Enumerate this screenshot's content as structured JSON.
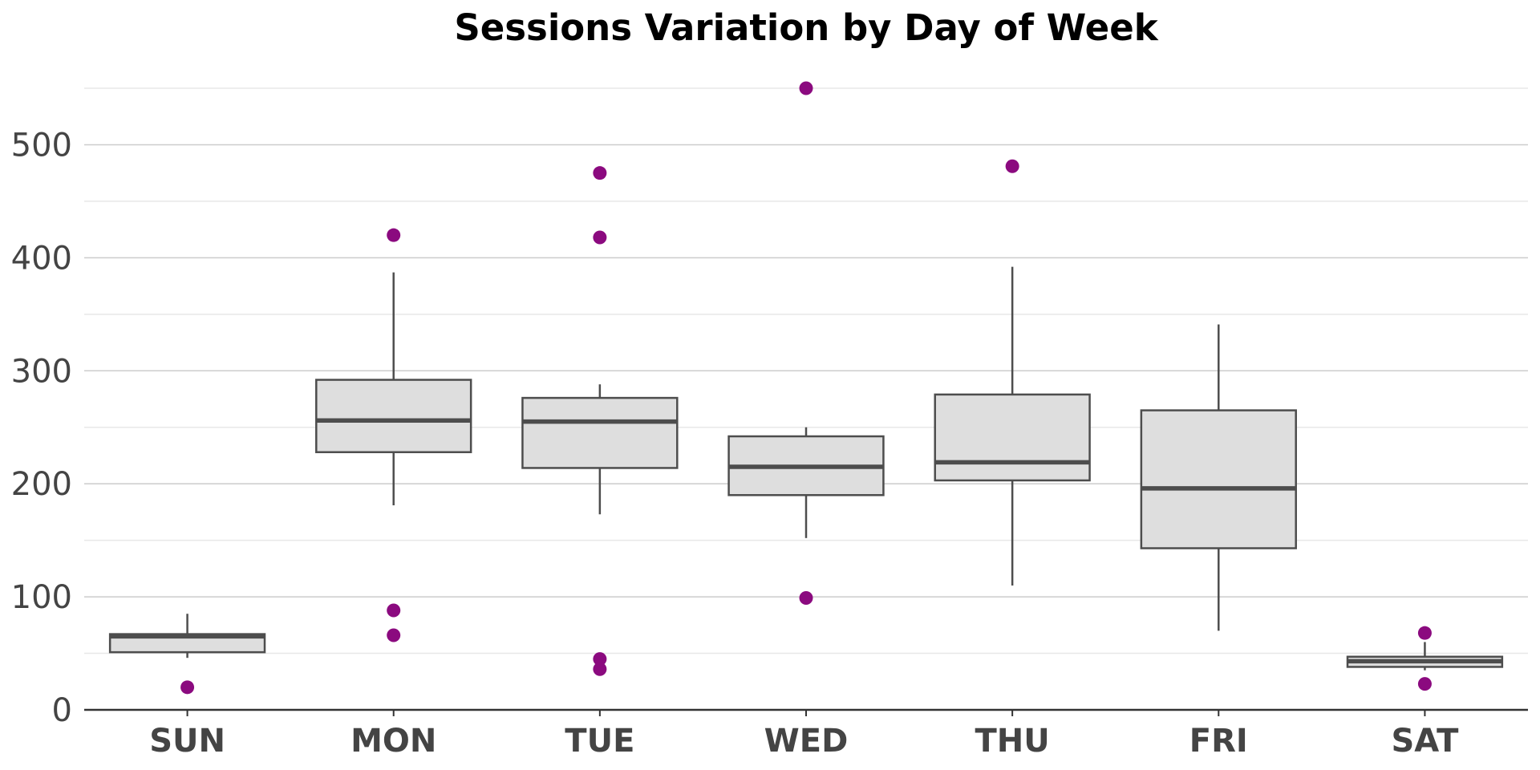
{
  "chart_data": {
    "type": "boxplot",
    "title": "Sessions Variation by Day of Week",
    "xlabel": "",
    "ylabel": "",
    "ylim": [
      0,
      550
    ],
    "yticks": [
      0,
      100,
      200,
      300,
      400,
      500
    ],
    "grid": {
      "major": true,
      "minor": true
    },
    "categories": [
      "SUN",
      "MON",
      "TUE",
      "WED",
      "THU",
      "FRI",
      "SAT"
    ],
    "boxes": [
      {
        "category": "SUN",
        "q1": 51,
        "median": 65,
        "q3": 67,
        "whisker_low": 46,
        "whisker_high": 85,
        "outliers": [
          20
        ]
      },
      {
        "category": "MON",
        "q1": 228,
        "median": 256,
        "q3": 292,
        "whisker_low": 181,
        "whisker_high": 387,
        "outliers": [
          420,
          88,
          66
        ]
      },
      {
        "category": "TUE",
        "q1": 214,
        "median": 255,
        "q3": 276,
        "whisker_low": 173,
        "whisker_high": 288,
        "outliers": [
          475,
          418,
          45,
          36
        ]
      },
      {
        "category": "WED",
        "q1": 190,
        "median": 215,
        "q3": 242,
        "whisker_low": 152,
        "whisker_high": 250,
        "outliers": [
          550,
          99
        ]
      },
      {
        "category": "THU",
        "q1": 203,
        "median": 219,
        "q3": 279,
        "whisker_low": 110,
        "whisker_high": 392,
        "outliers": [
          481
        ]
      },
      {
        "category": "FRI",
        "q1": 143,
        "median": 196,
        "q3": 265,
        "whisker_low": 70,
        "whisker_high": 341,
        "outliers": []
      },
      {
        "category": "SAT",
        "q1": 38,
        "median": 43,
        "q3": 47,
        "whisker_low": 35,
        "whisker_high": 60,
        "outliers": [
          68,
          23
        ]
      }
    ],
    "colors": {
      "box_fill": "#dedede",
      "box_stroke": "#4d4d4d",
      "outlier": "#8b0a7f",
      "major_grid": "#cccccc",
      "minor_grid": "#e8e8e8",
      "axis_line": "#333333",
      "tick_text": "#444444"
    }
  }
}
